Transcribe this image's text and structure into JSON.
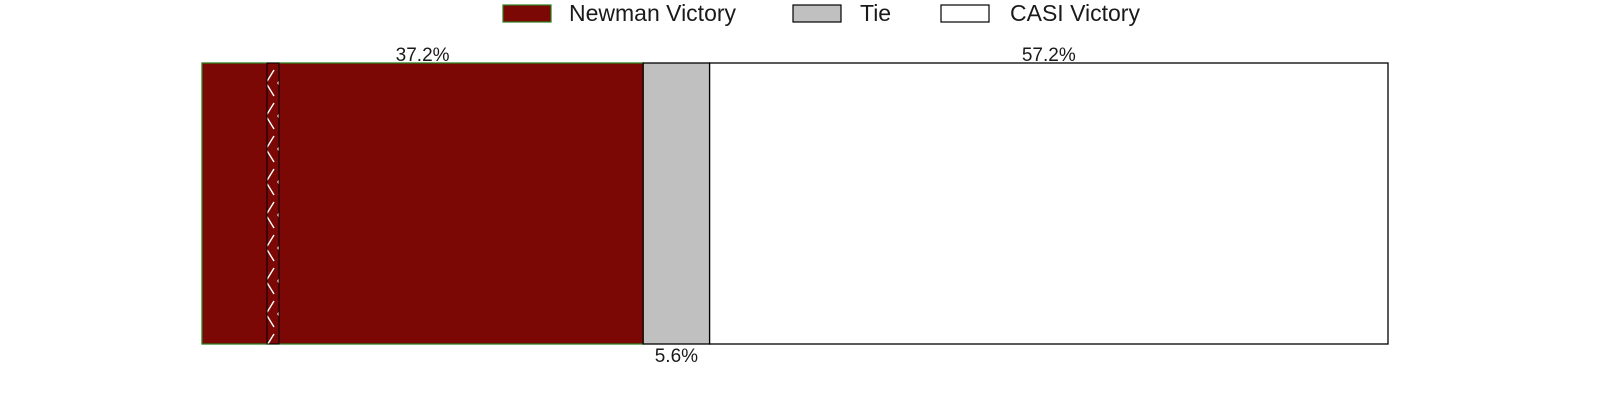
{
  "chart_data": {
    "type": "bar",
    "orientation": "horizontal",
    "stacked": true,
    "categories": [
      ""
    ],
    "series": [
      {
        "name": "Newman Victory",
        "values": [
          37.2
        ],
        "label": "37.2%",
        "color": "#7b0804",
        "edge_color": "#2e7d1f"
      },
      {
        "name": "Tie",
        "values": [
          5.6
        ],
        "label": "5.6%",
        "color": "#c0c0c0",
        "edge_color": "#000000"
      },
      {
        "name": "CASI Victory",
        "values": [
          57.2
        ],
        "label": "57.2%",
        "color": "#ffffff",
        "edge_color": "#000000"
      }
    ],
    "xlim": [
      0,
      100
    ],
    "legend_position": "top-center",
    "grid": false,
    "title": "",
    "xlabel": "",
    "ylabel": ""
  }
}
